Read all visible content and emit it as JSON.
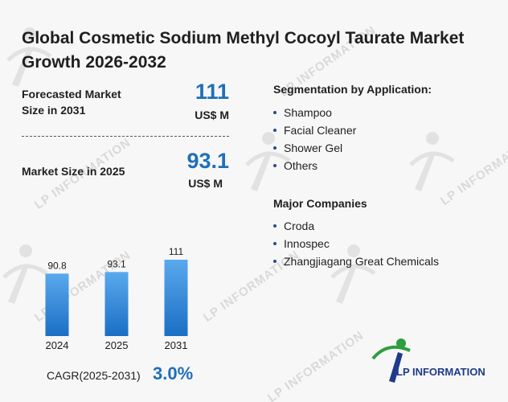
{
  "title": "Global Cosmetic Sodium Methyl Cocoyl Taurate Market Growth 2026-2032",
  "watermark": "LP INFORMATION",
  "kpis": {
    "forecast": {
      "label_line1": "Forecasted Market",
      "label_line2": "Size in 2031",
      "value": "111",
      "unit": "US$ M"
    },
    "current": {
      "label": "Market Size in 2025",
      "value": "93.1",
      "unit": "US$ M"
    }
  },
  "segmentation": {
    "title": "Segmentation by Application:",
    "items": [
      "Shampoo",
      "Facial Cleaner",
      "Shower Gel",
      "Others"
    ]
  },
  "companies": {
    "title": "Major Companies",
    "items": [
      "Croda",
      "Innospec",
      "Zhangjiagang Great Chemicals"
    ]
  },
  "cagr": {
    "label": "CAGR(2025-2031)",
    "value": "3.0%"
  },
  "logo": {
    "text": "LP INFORMATION"
  },
  "colors": {
    "accent": "#1f6fb8",
    "bar_top": "#5aa9ee",
    "bar_bottom": "#1a6fc4",
    "logo_blue": "#1e3a8a",
    "logo_green": "#2e9e3e"
  },
  "chart_data": {
    "type": "bar",
    "categories": [
      "2024",
      "2025",
      "2031"
    ],
    "values": [
      90.8,
      93.1,
      111
    ],
    "value_labels": [
      "90.8",
      "93.1",
      "111"
    ],
    "title": "",
    "xlabel": "",
    "ylabel": "",
    "ylim": [
      0,
      111
    ],
    "grid": false,
    "legend": "none"
  }
}
